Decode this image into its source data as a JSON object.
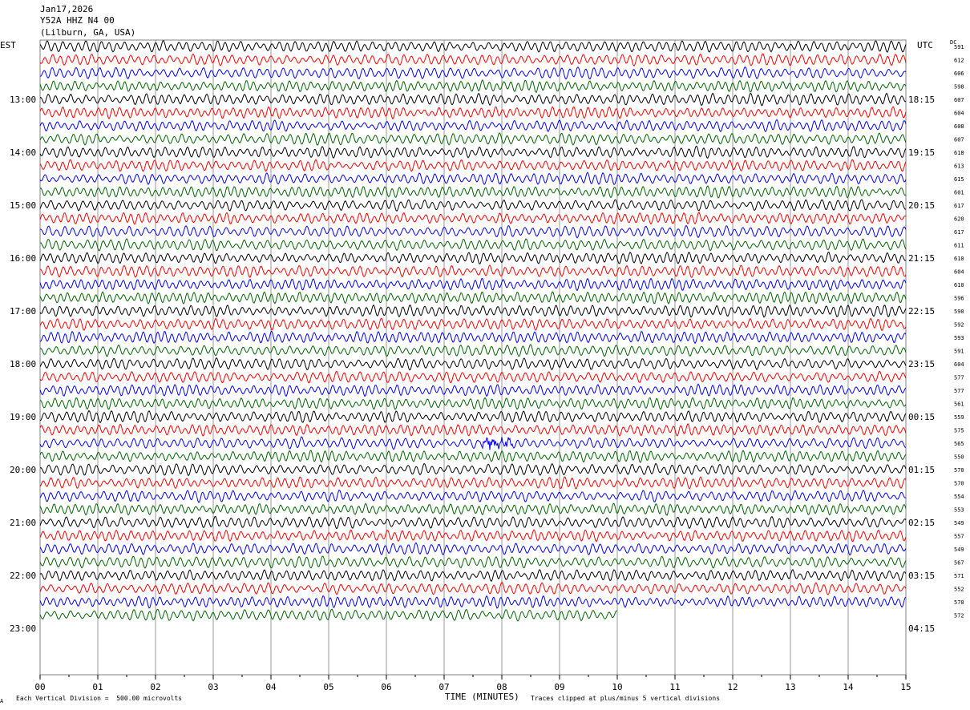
{
  "header": {
    "date": "Jan17,2026",
    "station": "Y52A HHZ N4 00",
    "location": "(Lilburn, GA, USA)"
  },
  "left_timezone": "EST",
  "right_timezone": "UTC",
  "dc_label": "DC",
  "footer": {
    "scale_note": "Each Vertical Division =  500.00 microvolts",
    "corner_mark": "A",
    "xlabel": "TIME (MINUTES)",
    "clip_note": "Traces clipped at plus/minus 5 vertical divisions"
  },
  "colors": {
    "trace_cycle": [
      "#000000",
      "#ff0000",
      "#0000ff",
      "#006400"
    ],
    "grid": "#808080"
  },
  "chart_data": {
    "type": "line",
    "title": "Jan17,2026",
    "xlabel": "TIME (MINUTES)",
    "ylabel": "",
    "xlim": [
      0,
      15
    ],
    "x_ticks": [
      "00",
      "01",
      "02",
      "03",
      "04",
      "05",
      "06",
      "07",
      "08",
      "09",
      "10",
      "11",
      "12",
      "13",
      "14",
      "15"
    ],
    "left_hour_labels": [
      "13:00",
      "14:00",
      "15:00",
      "16:00",
      "17:00",
      "18:00",
      "19:00",
      "20:00",
      "21:00",
      "22:00",
      "23:00"
    ],
    "right_hour_labels": [
      "18:15",
      "19:15",
      "20:15",
      "21:15",
      "22:15",
      "23:15",
      "00:15",
      "01:15",
      "02:15",
      "03:15",
      "04:15"
    ],
    "traces_per_hour": 4,
    "minutes_per_trace": 15,
    "dc_offsets": [
      591,
      612,
      606,
      598,
      607,
      604,
      608,
      607,
      618,
      613,
      615,
      601,
      617,
      620,
      617,
      611,
      610,
      604,
      610,
      596,
      590,
      592,
      593,
      591,
      604,
      577,
      577,
      561,
      559,
      575,
      565,
      550,
      570,
      570,
      554,
      553,
      549,
      557,
      549,
      567,
      571,
      552,
      570,
      572
    ],
    "last_trace_end_minute": 10,
    "events": [
      {
        "trace_index": 30,
        "start_minute": 7.6,
        "end_minute": 8.2,
        "note": "larger amplitude burst"
      }
    ],
    "grid": true
  }
}
